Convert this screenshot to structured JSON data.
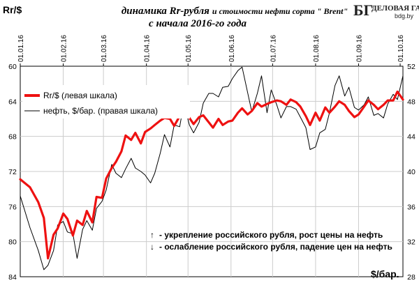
{
  "header": {
    "title_line1_main": "динамика  Rr-рубля",
    "title_line1_rest": "и стоимости нефти сорта \" Brent\"",
    "title_line2": "с начала 2016-го года"
  },
  "logo": {
    "mark": "БГ",
    "name": "ДЕЛОВАЯ ГАЗЕТА",
    "site": "bdg.by"
  },
  "notes": {
    "up_arrow": "↑",
    "up_text": "- укрепление российского рубля, рост цены на нефть",
    "down_arrow": "↓",
    "down_text": "- ослабление российского рубля, падение цен на нефть"
  },
  "colors": {
    "rub": "#ee1111",
    "oil": "#000000",
    "grid": "#cccccc"
  },
  "chart_data": {
    "type": "line",
    "title": "динамика  Rr-рубля и стоимости нефти сорта \" Brent\" с начала 2016-го года",
    "left_axis": {
      "label": "Rr/$",
      "ticks": [
        60,
        64,
        68,
        72,
        76,
        80,
        84
      ],
      "range": [
        60,
        84
      ],
      "inverted": true
    },
    "right_axis": {
      "label": "$/бар.",
      "ticks": [
        28,
        32,
        36,
        40,
        44,
        48,
        52
      ],
      "range": [
        28,
        52
      ]
    },
    "x_ticks": [
      "01.01.16",
      "01.02.16",
      "01.03.16",
      "01.04.16",
      "01.05.16",
      "01.06.16",
      "01.07.16",
      "01.08.16",
      "01.09.16",
      "01.10.16"
    ],
    "grid": true,
    "legend_position": "top-left",
    "series": [
      {
        "name": "Rr/$  (левая шкала)",
        "axis": "left",
        "color": "#ee1111",
        "x": [
          "01.01.16",
          "08.01.16",
          "14.01.16",
          "18.01.16",
          "21.01.16",
          "25.01.16",
          "28.01.16",
          "01.02.16",
          "04.02.16",
          "08.02.16",
          "11.02.16",
          "15.02.16",
          "18.02.16",
          "22.02.16",
          "25.02.16",
          "29.02.16",
          "03.03.16",
          "07.03.16",
          "10.03.16",
          "14.03.16",
          "17.03.16",
          "21.03.16",
          "24.03.16",
          "28.03.16",
          "31.03.16",
          "04.04.16",
          "07.04.16",
          "11.04.16",
          "14.04.16",
          "18.04.16",
          "21.04.16",
          "25.04.16",
          "28.04.16",
          "02.05.16",
          "05.05.16",
          "09.05.16",
          "12.05.16",
          "16.05.16",
          "19.05.16",
          "23.05.16",
          "26.05.16",
          "30.05.16",
          "02.06.16",
          "06.06.16",
          "09.06.16",
          "13.06.16",
          "16.06.16",
          "20.06.16",
          "23.06.16",
          "27.06.16",
          "30.06.16",
          "04.07.16",
          "07.07.16",
          "11.07.16",
          "14.07.16",
          "18.07.16",
          "21.07.16",
          "25.07.16",
          "28.07.16",
          "01.08.16",
          "04.08.16",
          "08.08.16",
          "11.08.16",
          "15.08.16",
          "18.08.16",
          "22.08.16",
          "25.08.16",
          "29.08.16",
          "01.09.16",
          "05.09.16",
          "08.09.16",
          "12.09.16",
          "15.09.16",
          "19.09.16",
          "22.09.16",
          "26.09.16",
          "29.09.16",
          "03.10.16"
        ],
        "values": [
          72.9,
          73.8,
          75.5,
          77.3,
          81.9,
          79.2,
          78.5,
          76.8,
          77.4,
          79.3,
          77.6,
          78.1,
          76.5,
          77.8,
          74.9,
          75.0,
          72.8,
          71.6,
          70.9,
          69.7,
          67.9,
          68.4,
          67.6,
          68.8,
          67.5,
          67.1,
          66.7,
          66.2,
          65.9,
          66.0,
          66.8,
          65.7,
          64.9,
          65.9,
          66.6,
          65.8,
          65.6,
          66.4,
          67.0,
          66.0,
          66.7,
          66.3,
          66.2,
          65.3,
          64.8,
          65.5,
          65.1,
          64.2,
          64.6,
          64.3,
          64.1,
          63.9,
          64.0,
          64.4,
          63.8,
          64.1,
          64.6,
          65.7,
          66.7,
          65.3,
          66.2,
          64.7,
          65.3,
          64.6,
          64.0,
          64.4,
          65.1,
          65.8,
          65.5,
          64.6,
          63.9,
          64.4,
          64.9,
          64.4,
          63.9,
          63.9,
          62.9,
          63.8
        ]
      },
      {
        "name": "нефть, $/бар.  (правая шкала)",
        "axis": "right",
        "color": "#000000",
        "x": [
          "01.01.16",
          "08.01.16",
          "14.01.16",
          "18.01.16",
          "21.01.16",
          "25.01.16",
          "28.01.16",
          "01.02.16",
          "04.02.16",
          "08.02.16",
          "11.02.16",
          "15.02.16",
          "18.02.16",
          "22.02.16",
          "25.02.16",
          "29.02.16",
          "03.03.16",
          "07.03.16",
          "10.03.16",
          "14.03.16",
          "17.03.16",
          "21.03.16",
          "24.03.16",
          "28.03.16",
          "31.03.16",
          "04.04.16",
          "07.04.16",
          "11.04.16",
          "14.04.16",
          "18.04.16",
          "21.04.16",
          "25.04.16",
          "28.04.16",
          "02.05.16",
          "05.05.16",
          "09.05.16",
          "12.05.16",
          "16.05.16",
          "19.05.16",
          "23.05.16",
          "26.05.16",
          "30.05.16",
          "02.06.16",
          "06.06.16",
          "09.06.16",
          "13.06.16",
          "16.06.16",
          "20.06.16",
          "23.06.16",
          "27.06.16",
          "30.06.16",
          "04.07.16",
          "07.07.16",
          "11.07.16",
          "14.07.16",
          "18.07.16",
          "21.07.16",
          "25.07.16",
          "28.07.16",
          "01.08.16",
          "04.08.16",
          "08.08.16",
          "11.08.16",
          "15.08.16",
          "18.08.16",
          "22.08.16",
          "25.08.16",
          "29.08.16",
          "01.09.16",
          "05.09.16",
          "08.09.16",
          "12.09.16",
          "15.09.16",
          "19.09.16",
          "22.09.16",
          "26.09.16",
          "29.09.16",
          "03.10.16"
        ],
        "values": [
          37.2,
          33.6,
          31.0,
          28.8,
          29.3,
          31.0,
          33.9,
          34.3,
          33.1,
          32.9,
          30.1,
          33.4,
          34.4,
          33.3,
          35.8,
          36.6,
          37.9,
          40.8,
          39.8,
          39.3,
          40.3,
          41.5,
          40.4,
          40.0,
          39.6,
          38.7,
          39.8,
          42.1,
          44.2,
          42.8,
          45.3,
          45.1,
          47.8,
          45.3,
          44.4,
          45.6,
          47.8,
          48.9,
          48.9,
          48.5,
          49.6,
          49.7,
          50.6,
          51.5,
          51.9,
          49.0,
          46.8,
          48.9,
          50.9,
          46.7,
          49.3,
          47.6,
          46.1,
          47.4,
          47.4,
          47.1,
          46.2,
          45.0,
          42.5,
          42.8,
          44.4,
          44.8,
          46.7,
          49.8,
          50.9,
          48.6,
          49.6,
          47.3,
          47.0,
          47.6,
          48.5,
          46.4,
          46.6,
          46.1,
          47.7,
          48.8,
          48.2,
          50.9
        ]
      }
    ]
  }
}
